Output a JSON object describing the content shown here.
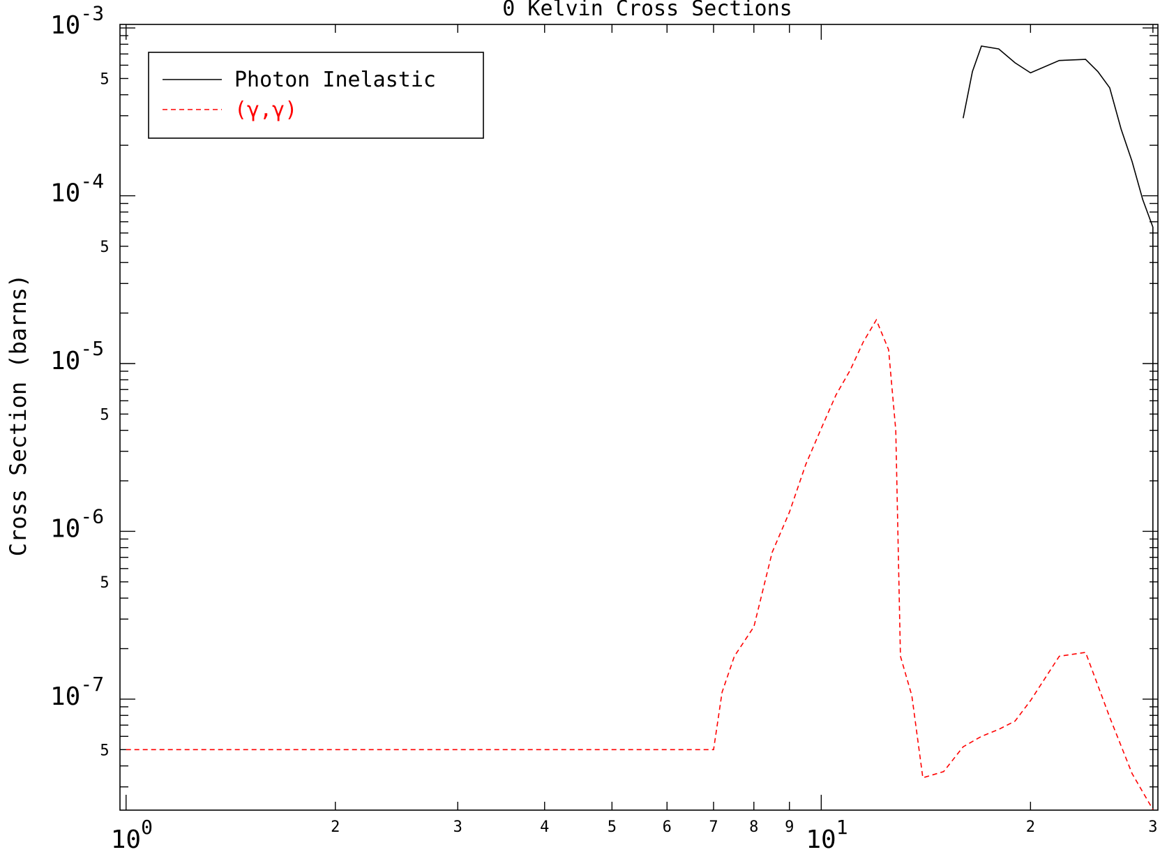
{
  "chart_data": {
    "type": "line",
    "title": "0 Kelvin Cross Sections",
    "xlabel": "",
    "ylabel": "Cross Section (barns)",
    "x_scale": "log",
    "y_scale": "log",
    "xlim": [
      0.98,
      30.5
    ],
    "ylim": [
      2.18e-08,
      0.00105
    ],
    "grid": false,
    "legend_position": "top-left",
    "x_major_ticks": [
      {
        "value": 1,
        "base": "10",
        "exp": "0"
      },
      {
        "value": 10,
        "base": "10",
        "exp": "1"
      }
    ],
    "x_minor_ticks": [
      {
        "value": 2,
        "label": "2"
      },
      {
        "value": 3,
        "label": "3"
      },
      {
        "value": 4,
        "label": "4"
      },
      {
        "value": 5,
        "label": "5"
      },
      {
        "value": 6,
        "label": "6"
      },
      {
        "value": 7,
        "label": "7"
      },
      {
        "value": 8,
        "label": "8"
      },
      {
        "value": 9,
        "label": "9"
      },
      {
        "value": 20,
        "label": "2"
      },
      {
        "value": 30,
        "label": "3"
      }
    ],
    "y_major_ticks": [
      {
        "value": 0.001,
        "base": "10",
        "exp": "-3"
      },
      {
        "value": 0.0001,
        "base": "10",
        "exp": "-4"
      },
      {
        "value": 1e-05,
        "base": "10",
        "exp": "-5"
      },
      {
        "value": 1e-06,
        "base": "10",
        "exp": "-6"
      },
      {
        "value": 1e-07,
        "base": "10",
        "exp": "-7"
      }
    ],
    "y_minor_labels": [
      {
        "value": 0.0005,
        "label": "5"
      },
      {
        "value": 5e-05,
        "label": "5"
      },
      {
        "value": 5e-06,
        "label": "5"
      },
      {
        "value": 5e-07,
        "label": "5"
      },
      {
        "value": 5e-08,
        "label": "5"
      }
    ],
    "series": [
      {
        "name": "Photon Inelastic",
        "color": "#000000",
        "dash": "solid",
        "x": [
          16.0,
          16.5,
          17.0,
          18.0,
          19.0,
          20.0,
          22.0,
          24.0,
          25.0,
          26.0,
          27.0,
          28.0,
          29.0,
          30.0,
          30.0
        ],
        "y": [
          0.00029,
          0.00055,
          0.00078,
          0.00075,
          0.00062,
          0.00054,
          0.00064,
          0.00065,
          0.00055,
          0.00044,
          0.00025,
          0.00016,
          9.5e-05,
          6.5e-05,
          2.18e-08
        ]
      },
      {
        "name": "(γ,γ)",
        "color": "#ff0000",
        "dash": "dashed",
        "x": [
          1.0,
          7.0,
          7.2,
          7.5,
          8.0,
          8.5,
          9.0,
          9.5,
          10.0,
          10.5,
          11.0,
          11.5,
          12.0,
          12.5,
          12.8,
          13.0,
          13.5,
          14.0,
          15.0,
          16.0,
          17.0,
          18.0,
          19.0,
          20.0,
          22.0,
          24.0,
          26.0,
          28.0,
          29.0,
          30.0
        ],
        "y": [
          5e-08,
          5e-08,
          1.1e-07,
          1.8e-07,
          2.7e-07,
          7.5e-07,
          1.3e-06,
          2.5e-06,
          4.1e-06,
          6.5e-06,
          9.1e-06,
          1.35e-05,
          1.82e-05,
          1.21e-05,
          4e-06,
          1.8e-07,
          1.05e-07,
          3.4e-08,
          3.7e-08,
          5.2e-08,
          6e-08,
          6.6e-08,
          7.4e-08,
          9.8e-08,
          1.8e-07,
          1.9e-07,
          7.8e-08,
          3.6e-08,
          2.8e-08,
          2.2e-08
        ]
      }
    ]
  }
}
